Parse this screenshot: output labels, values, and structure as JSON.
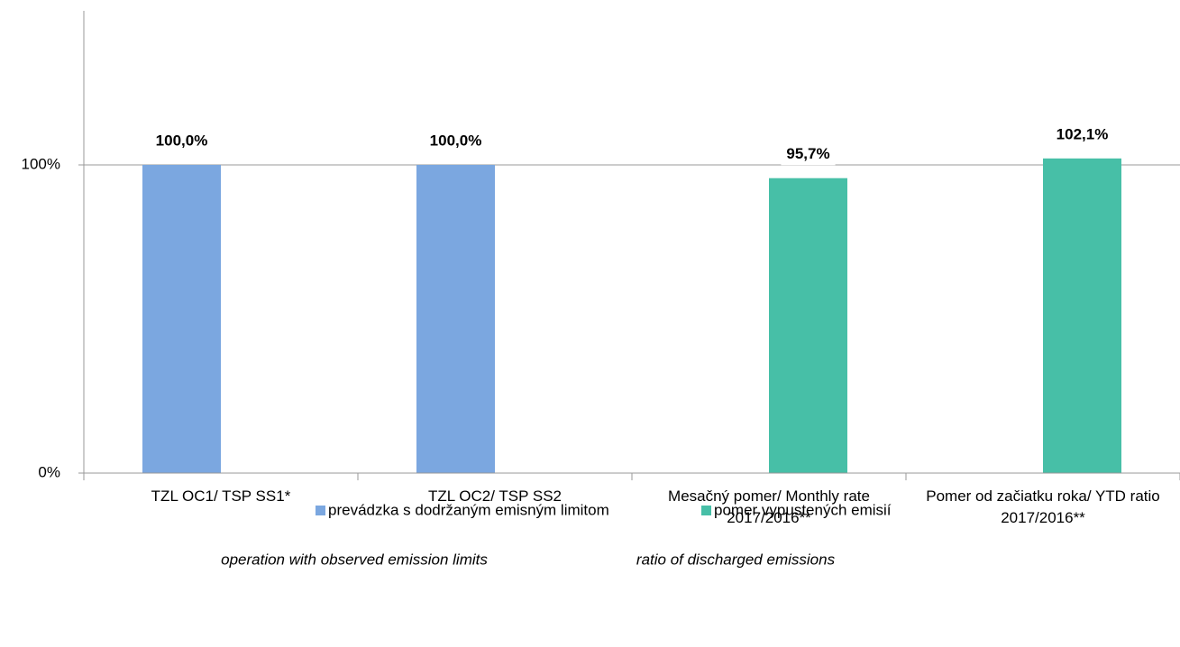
{
  "chart_data": {
    "type": "bar",
    "categories": [
      "TZL OC1/ TSP SS1*",
      "TZL OC2/ TSP SS2",
      "Mesačný pomer/ Monthly rate 2017/2016**",
      "Pomer od začiatku roka/ YTD ratio 2017/2016**"
    ],
    "series": [
      {
        "name": "prevádzka s dodržaným emisným limitom",
        "color": "#7ba7e0",
        "values": [
          100,
          100,
          null,
          null
        ],
        "value_labels": [
          "100,0%",
          "100,0%",
          null,
          null
        ]
      },
      {
        "name": "pomer vypustených emisií",
        "color": "#47bfa7",
        "values": [
          null,
          null,
          95.7,
          102.1
        ],
        "value_labels": [
          null,
          null,
          "95,7%",
          "102,1%"
        ]
      }
    ],
    "legend_notes": [
      "operation with observed emission limits",
      "ratio of discharged emissions"
    ],
    "ylim": [
      0,
      150
    ],
    "yticks": [
      {
        "value": 0,
        "label": "0%"
      },
      {
        "value": 100,
        "label": "100%"
      }
    ],
    "grid": true,
    "legend": "bottom"
  }
}
